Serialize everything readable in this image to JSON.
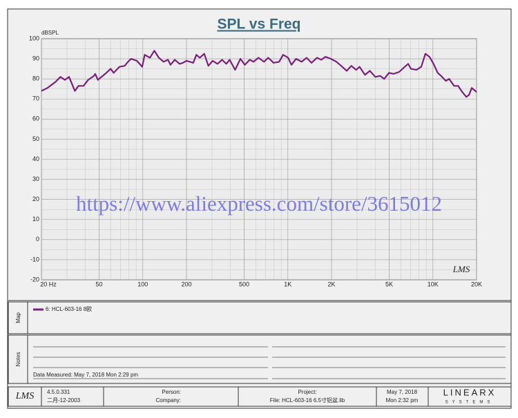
{
  "chart_data": {
    "type": "line",
    "title": "SPL vs Freq",
    "y_label": "dBSPL",
    "xscale": "log",
    "grid": true,
    "x": [
      20,
      22,
      25,
      27,
      29,
      31,
      34,
      36,
      39,
      42,
      46,
      47,
      49,
      55,
      60,
      63,
      69,
      75,
      79,
      83,
      91,
      99,
      103,
      112,
      120,
      129,
      139,
      149,
      155,
      166,
      179,
      189,
      200,
      223,
      234,
      247,
      265,
      283,
      303,
      327,
      352,
      376,
      397,
      433,
      471,
      505,
      546,
      580,
      627,
      685,
      732,
      797,
      871,
      927,
      1005,
      1059,
      1139,
      1246,
      1346,
      1455,
      1589,
      1701,
      1816,
      1981,
      2162,
      2333,
      2545,
      2741,
      2957,
      3122,
      3405,
      3674,
      4009,
      4325,
      4616,
      4980,
      5372,
      5862,
      6397,
      6751,
      7058,
      7702,
      8310,
      8873,
      9470,
      10106,
      10786,
      11384,
      12280,
      12960,
      13990,
      14925,
      15930,
      16997,
      17740,
      18520,
      19990
    ],
    "series": [
      {
        "name": "6: HCL-603-16 8欧",
        "color": "#7a1f7a",
        "values": [
          74,
          75.5,
          78.5,
          81,
          79.5,
          81,
          74,
          76.5,
          76.5,
          79.5,
          81.5,
          82.5,
          79.5,
          82.5,
          85,
          83,
          86,
          86.5,
          88.5,
          90,
          89,
          86,
          92,
          90.5,
          94,
          90.5,
          88.5,
          89.5,
          87,
          89.5,
          87.5,
          88,
          89,
          88,
          92,
          90.5,
          92.5,
          86.5,
          89,
          87.5,
          89.5,
          87.5,
          89.5,
          84.5,
          90,
          87,
          89.5,
          88.5,
          90.5,
          88.5,
          90.5,
          88,
          88.5,
          92,
          90.5,
          87,
          90,
          88.5,
          90.5,
          88,
          90.5,
          89.5,
          91,
          90,
          88.5,
          86.5,
          84,
          86.5,
          84.5,
          86,
          82,
          84,
          81,
          81.5,
          80,
          83,
          82.5,
          83.5,
          86,
          87.5,
          85,
          84.5,
          86,
          92.5,
          91,
          87.5,
          83,
          81.5,
          79,
          80,
          76.5,
          76.5,
          73.5,
          71,
          72,
          75.5,
          73.5
        ]
      }
    ],
    "xlim": [
      20,
      20000
    ],
    "ylim": [
      -20,
      100
    ],
    "xticks": [
      {
        "value": 20,
        "label": "20 Hz"
      },
      50,
      100,
      200,
      500,
      {
        "value": 1000,
        "label": "1K"
      },
      {
        "value": 2000,
        "label": "2K"
      },
      {
        "value": 5000,
        "label": "5K"
      },
      {
        "value": 10000,
        "label": "10K"
      },
      {
        "value": 20000,
        "label": "20K"
      }
    ],
    "yticks": [
      100,
      90,
      80,
      70,
      60,
      50,
      40,
      30,
      20,
      10,
      0,
      -10,
      -20
    ]
  },
  "watermark": "https://www.aliexpress.com/store/3615012",
  "plot_logo": "LMS",
  "map_label": "Map",
  "notes_label": "Notes",
  "notes_text": "Data Measured: May  7, 2018  Mon  2:29 pm",
  "footer": {
    "logo": "LMS",
    "version": "4.5.0.331",
    "build_date": "二月-12-2003",
    "person": "Person:",
    "company": "Company:",
    "project": "Project:",
    "file": "File: HCL-603-16  6.5寸铝盆.lib",
    "date": "May  7, 2018",
    "time": "Mon  2:32 pm",
    "brand": "LINEARX",
    "brand_sub": "SYSTEMS"
  }
}
